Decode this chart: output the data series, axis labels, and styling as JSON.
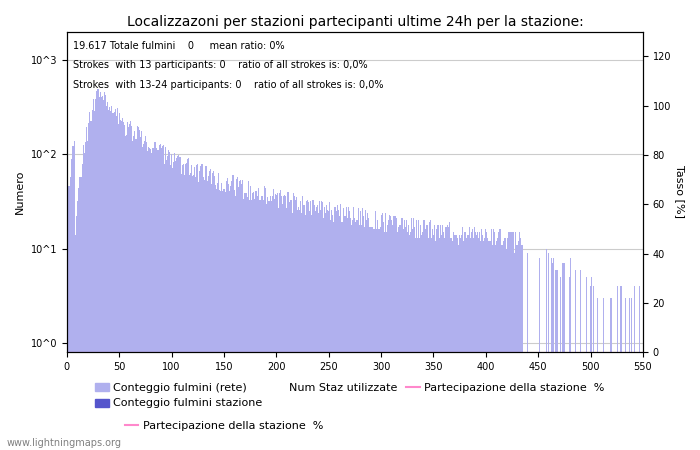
{
  "title": "Localizzazoni per stazioni partecipanti ultime 24h per la stazione:",
  "ylabel_left": "Numero",
  "ylabel_right": "Tasso [%]",
  "annotation_line1": "19.617 Totale fulmini    0     mean ratio: 0%",
  "annotation_line2": "Strokes  with 13 participants: 0    ratio of all strokes is: 0,0%",
  "annotation_line3": "Strokes  with 13-24 participants: 0    ratio of all strokes is: 0,0%",
  "watermark": "www.lightningmaps.org",
  "legend_label_light": "Conteggio fulmini (rete)",
  "legend_label_dark": "Conteggio fulmini stazione",
  "legend_label_num": "Num Staz utilizzate",
  "legend_label_line": "Partecipazione della stazione  %",
  "bar_color_light": "#b0b0ee",
  "bar_color_dark": "#5555cc",
  "line_color": "#ff88cc",
  "xmin": 0,
  "xmax": 550,
  "xticks": [
    0,
    50,
    100,
    150,
    200,
    250,
    300,
    350,
    400,
    450,
    500,
    550
  ],
  "yticks_right": [
    0,
    20,
    40,
    60,
    80,
    100,
    120
  ],
  "grid_color": "#cccccc",
  "bg_color": "#ffffff",
  "font_size_title": 10,
  "font_size_annot": 7,
  "font_size_axis": 8,
  "font_size_tick": 7,
  "font_size_legend": 8,
  "font_size_watermark": 7
}
